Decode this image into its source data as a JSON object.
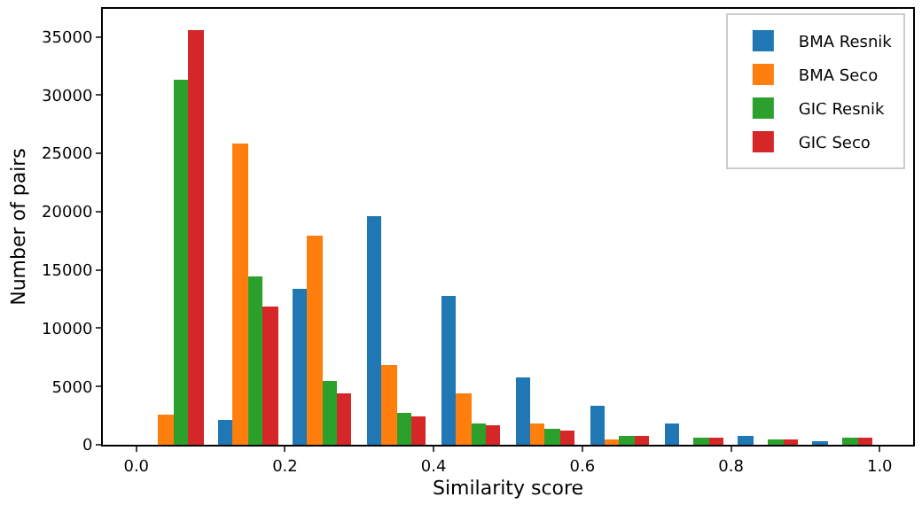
{
  "chart_data": {
    "type": "histogram",
    "xlabel": "Similarity score",
    "ylabel": "Number of pairs",
    "bins": [
      0.0,
      0.1,
      0.2,
      0.3,
      0.4,
      0.5,
      0.6,
      0.7,
      0.8,
      0.9,
      1.0
    ],
    "series": [
      {
        "name": "BMA Resnik",
        "color": "#1f77b4",
        "values": [
          0,
          2100,
          13400,
          19600,
          12700,
          5800,
          3300,
          1800,
          800,
          200
        ]
      },
      {
        "name": "BMA Seco",
        "color": "#ff7f0e",
        "values": [
          2600,
          25800,
          18000,
          6800,
          4400,
          1800,
          400,
          0,
          0,
          0
        ]
      },
      {
        "name": "GIC Resnik",
        "color": "#2ca02c",
        "values": [
          31300,
          14500,
          5400,
          2800,
          1800,
          1300,
          800,
          600,
          400,
          600
        ]
      },
      {
        "name": "GIC Seco",
        "color": "#d62728",
        "values": [
          35600,
          11800,
          4400,
          2400,
          1600,
          1200,
          800,
          600,
          400,
          600
        ]
      }
    ],
    "xlim": [
      -0.045,
      1.045
    ],
    "ylim": [
      0,
      37400
    ],
    "xticks": [
      {
        "value": 0,
        "label": "0.0"
      },
      0.2,
      0.4,
      0.6,
      0.8,
      {
        "value": 1,
        "label": "1.0"
      }
    ],
    "yticks": [
      0,
      5000,
      10000,
      15000,
      20000,
      25000,
      30000,
      35000
    ],
    "legend": "top right",
    "grid": false
  }
}
